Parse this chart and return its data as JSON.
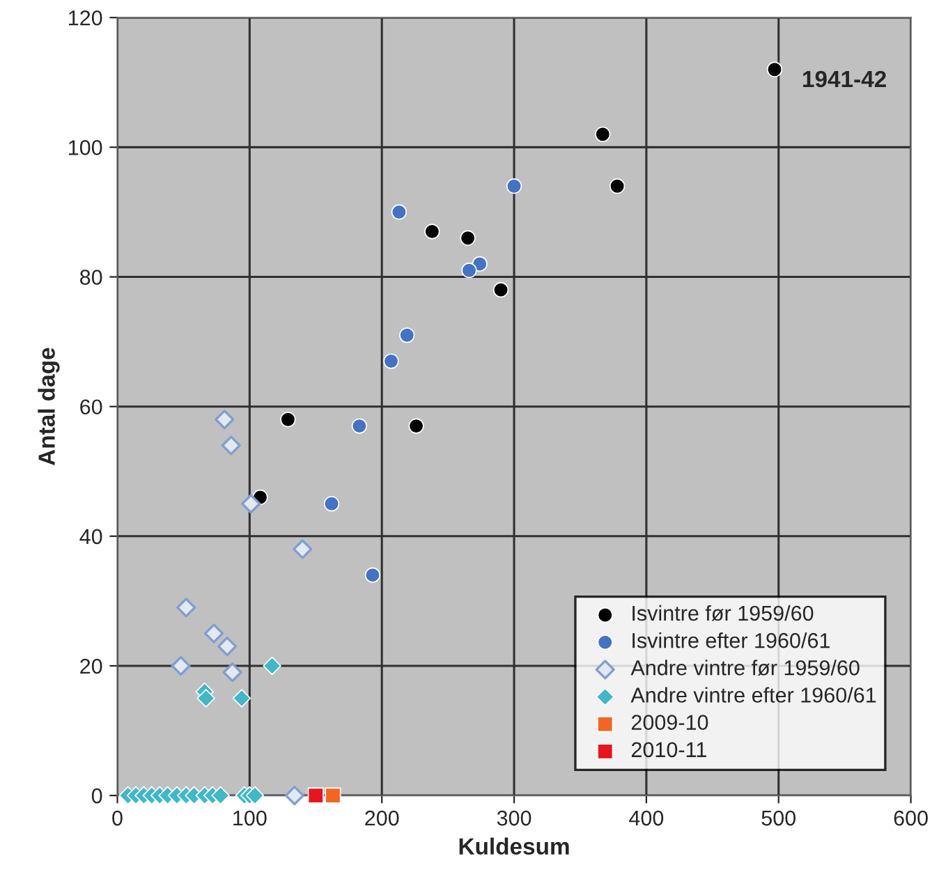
{
  "chart_data": {
    "type": "scatter",
    "xlabel": "Kuldesum",
    "ylabel": "Antal dage",
    "xlim": [
      0,
      600
    ],
    "xticks": [
      0,
      100,
      200,
      300,
      400,
      500,
      600
    ],
    "ylim": [
      0,
      120
    ],
    "yticks": [
      0,
      20,
      40,
      60,
      80,
      100,
      120
    ],
    "grid": true,
    "legend": "bottom right",
    "annotations": [
      {
        "text": "1941-42",
        "x": 497,
        "y": 112
      }
    ],
    "series": [
      {
        "name": "Isvintre før 1959/60",
        "color": "#000000",
        "marker": "circle",
        "x": [
          497,
          367,
          378,
          238,
          265,
          290,
          129,
          226,
          108
        ],
        "values": [
          112,
          102,
          94,
          87,
          86,
          78,
          58,
          57,
          46
        ]
      },
      {
        "name": "Isvintre efter 1960/61",
        "color": "#4472c4",
        "marker": "circle",
        "x": [
          300,
          213,
          274,
          266,
          219,
          207,
          183,
          162,
          193
        ],
        "values": [
          94,
          90,
          82,
          81,
          71,
          67,
          57,
          45,
          34
        ]
      },
      {
        "name": "Andre vintre før 1959/60",
        "color": "#7f9fd0",
        "marker": "diamond",
        "x": [
          81,
          86,
          101,
          140,
          52,
          73,
          83,
          48,
          87,
          134
        ],
        "values": [
          58,
          54,
          45,
          38,
          29,
          25,
          23,
          20,
          19,
          0
        ]
      },
      {
        "name": "Andre vintre efter 1960/61",
        "color": "#40b8c8",
        "marker": "diamond",
        "x": [
          117,
          66,
          67,
          94,
          8,
          14,
          20,
          26,
          32,
          38,
          45,
          52,
          58,
          66,
          72,
          78,
          96,
          100,
          104
        ],
        "values": [
          20,
          16,
          15,
          15,
          0,
          0,
          0,
          0,
          0,
          0,
          0,
          0,
          0,
          0,
          0,
          0,
          0,
          0,
          0
        ]
      },
      {
        "name": "2009-10",
        "color": "#f26522",
        "marker": "square",
        "x": [
          163
        ],
        "values": [
          0
        ]
      },
      {
        "name": "2010-11",
        "color": "#e8141e",
        "marker": "square",
        "x": [
          150
        ],
        "values": [
          0
        ]
      }
    ]
  }
}
